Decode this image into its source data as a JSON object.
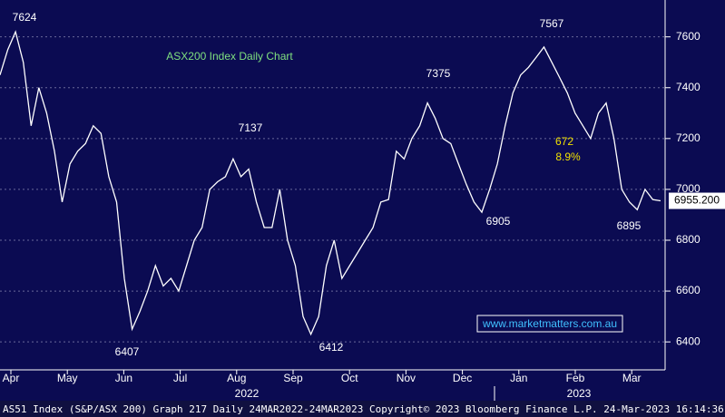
{
  "chart_data": {
    "type": "line",
    "title": "ASX200 Index Daily Chart",
    "source": "www.marketmatters.com.au",
    "footer": "AS51 Index (S&P/ASX 200) Graph 217  Daily 24MAR2022-24MAR2023 Copyright© 2023 Bloomberg Finance L.P. 24-Mar-2023 16:14:36",
    "last_price": "6955.200",
    "months": [
      "Apr",
      "May",
      "Jun",
      "Jul",
      "Aug",
      "Sep",
      "Oct",
      "Nov",
      "Dec",
      "Jan",
      "Feb",
      "Mar"
    ],
    "years": [
      "2022",
      "2023"
    ],
    "annotations": [
      "7624",
      "6407",
      "7137",
      "6412",
      "7375",
      "6905",
      "7567",
      "6895",
      "672",
      "8.9%"
    ],
    "color": "#ffffff",
    "values": [
      7450,
      7550,
      7620,
      7500,
      7250,
      7400,
      7300,
      7150,
      6950,
      7100,
      7150,
      7180,
      7250,
      7220,
      7050,
      6950,
      6650,
      6450,
      6520,
      6600,
      6700,
      6620,
      6650,
      6600,
      6700,
      6800,
      6850,
      7000,
      7030,
      7050,
      7120,
      7050,
      7080,
      6950,
      6850,
      6850,
      7000,
      6800,
      6700,
      6500,
      6430,
      6500,
      6700,
      6800,
      6650,
      6700,
      6750,
      6800,
      6850,
      6950,
      6960,
      7150,
      7120,
      7200,
      7250,
      7340,
      7280,
      7200,
      7180,
      7100,
      7020,
      6950,
      6910,
      7000,
      7100,
      7250,
      7380,
      7450,
      7480,
      7520,
      7560,
      7500,
      7440,
      7380,
      7300,
      7250,
      7200,
      7300,
      7340,
      7200,
      7000,
      6950,
      6920,
      7000,
      6960,
      6955
    ],
    "ylim": [
      6290,
      7745
    ],
    "yticks": [
      6400,
      6600,
      6800,
      7000,
      7200,
      7400,
      7600
    ],
    "grid": true
  }
}
